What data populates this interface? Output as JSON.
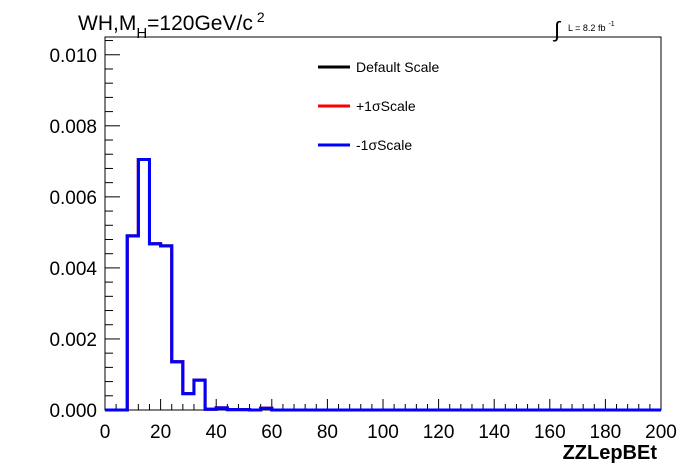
{
  "chart_data": {
    "type": "step",
    "title": {
      "main": "WH,M",
      "sub": "H",
      "rest": "=120GeV/c",
      "sup": "2"
    },
    "luminosity": {
      "integral": "∫",
      "text": "L = 8.2 fb",
      "sup": "-1"
    },
    "xlabel": "ZZLepBEt",
    "ylabel": "",
    "xlim": [
      0,
      200
    ],
    "ylim": [
      0,
      0.0105
    ],
    "x_ticks": [
      "0",
      "20",
      "40",
      "60",
      "80",
      "100",
      "120",
      "140",
      "160",
      "180",
      "200"
    ],
    "x_tick_values": [
      0,
      20,
      40,
      60,
      80,
      100,
      120,
      140,
      160,
      180,
      200
    ],
    "y_ticks": [
      "0.000",
      "0.002",
      "0.004",
      "0.006",
      "0.008",
      "0.010"
    ],
    "y_tick_values": [
      0,
      0.002,
      0.004,
      0.006,
      0.008,
      0.01
    ],
    "legend_position": "top-center",
    "bin_edges": [
      0,
      4,
      8,
      12,
      16,
      20,
      24,
      28,
      32,
      36,
      40,
      44,
      48,
      52,
      56,
      60,
      64,
      68,
      72,
      76,
      80,
      84,
      88,
      92,
      96,
      100,
      104,
      108,
      112,
      116,
      120,
      124,
      128,
      132,
      136,
      140,
      144,
      148,
      152,
      156,
      160,
      164,
      168,
      172,
      176,
      180,
      184,
      188,
      192,
      196,
      200
    ],
    "series": [
      {
        "name": "Default Scale",
        "color": "#000000",
        "values": [
          0,
          0,
          0.0049,
          0.00705,
          0.00468,
          0.00462,
          0.00136,
          0.00046,
          0.00084,
          2e-05,
          6e-05,
          1e-05,
          1e-05,
          0,
          5e-05,
          0,
          0,
          0,
          0,
          0,
          0,
          0,
          0,
          0,
          0,
          0,
          0,
          0,
          0,
          0,
          0,
          0,
          0,
          0,
          0,
          0,
          0,
          0,
          0,
          0,
          0,
          0,
          0,
          0,
          0,
          0,
          0,
          0,
          0,
          0
        ]
      },
      {
        "name": "+1σScale",
        "color": "#ff0000",
        "values": [
          0,
          0,
          0.0049,
          0.00705,
          0.00468,
          0.00462,
          0.00136,
          0.00046,
          0.00084,
          2e-05,
          6e-05,
          1e-05,
          1e-05,
          0,
          5e-05,
          0,
          0,
          0,
          0,
          0,
          0,
          0,
          0,
          0,
          0,
          0,
          0,
          0,
          0,
          0,
          0,
          0,
          0,
          0,
          0,
          0,
          0,
          0,
          0,
          0,
          0,
          0,
          0,
          0,
          0,
          0,
          0,
          0,
          0,
          0
        ]
      },
      {
        "name": "-1σScale",
        "color": "#0000ff",
        "values": [
          0,
          0,
          0.0049,
          0.00705,
          0.00468,
          0.00462,
          0.00136,
          0.00046,
          0.00084,
          2e-05,
          6e-05,
          1e-05,
          1e-05,
          0,
          5e-05,
          0,
          0,
          0,
          0,
          0,
          0,
          0,
          0,
          0,
          0,
          0,
          0,
          0,
          0,
          0,
          0,
          0,
          0,
          0,
          0,
          0,
          0,
          0,
          0,
          0,
          0,
          0,
          0,
          0,
          0,
          0,
          0,
          0,
          0,
          0
        ]
      }
    ]
  }
}
